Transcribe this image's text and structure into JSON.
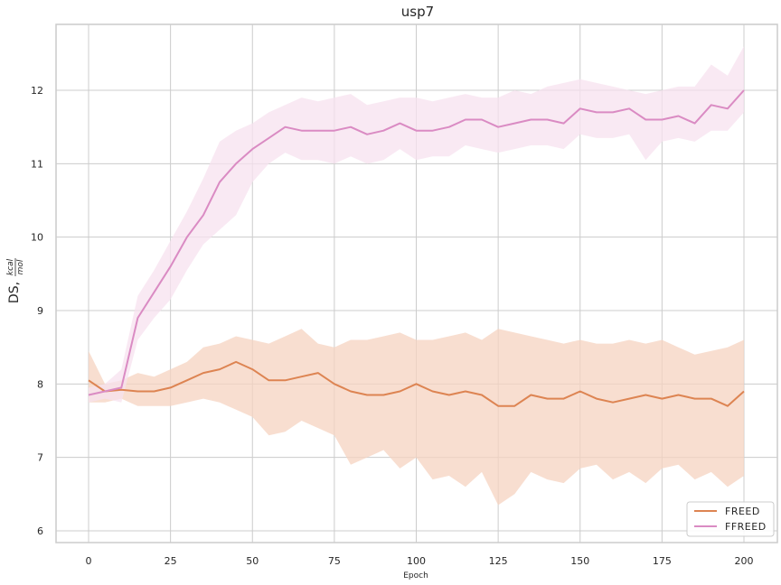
{
  "chart_data": {
    "type": "line",
    "title": "usp7",
    "xlabel": "Epoch",
    "ylabel": "DS, kcal/mol",
    "ylabel_main": "DS,",
    "ylabel_frac_num": "kcal",
    "ylabel_frac_den": "mol",
    "xlim": [
      -10,
      210
    ],
    "ylim": [
      5.85,
      12.9
    ],
    "xticks": [
      0,
      25,
      50,
      75,
      100,
      125,
      150,
      175,
      200
    ],
    "yticks": [
      6,
      7,
      8,
      9,
      10,
      11,
      12
    ],
    "grid": true,
    "legend_position": "lower right",
    "x": [
      0,
      5,
      10,
      15,
      20,
      25,
      30,
      35,
      40,
      45,
      50,
      55,
      60,
      65,
      70,
      75,
      80,
      85,
      90,
      95,
      100,
      105,
      110,
      115,
      120,
      125,
      130,
      135,
      140,
      145,
      150,
      155,
      160,
      165,
      170,
      175,
      180,
      185,
      190,
      195,
      200
    ],
    "series": [
      {
        "name": "FREED",
        "color": "#dd8452",
        "band_color": "#f5d3c0",
        "values": [
          8.05,
          7.9,
          7.92,
          7.9,
          7.9,
          7.95,
          8.05,
          8.15,
          8.2,
          8.3,
          8.2,
          8.05,
          8.05,
          8.1,
          8.15,
          8.0,
          7.9,
          7.85,
          7.85,
          7.9,
          8.0,
          7.9,
          7.85,
          7.9,
          7.85,
          7.7,
          7.7,
          7.85,
          7.8,
          7.8,
          7.9,
          7.8,
          7.75,
          7.8,
          7.85,
          7.8,
          7.85,
          7.8,
          7.8,
          7.7,
          7.9
        ],
        "upper": [
          8.45,
          8.0,
          8.05,
          8.15,
          8.1,
          8.2,
          8.3,
          8.5,
          8.55,
          8.65,
          8.6,
          8.55,
          8.65,
          8.75,
          8.55,
          8.5,
          8.6,
          8.6,
          8.65,
          8.7,
          8.6,
          8.6,
          8.65,
          8.7,
          8.6,
          8.75,
          8.7,
          8.65,
          8.6,
          8.55,
          8.6,
          8.55,
          8.55,
          8.6,
          8.55,
          8.6,
          8.5,
          8.4,
          8.45,
          8.5,
          8.6
        ],
        "lower": [
          7.75,
          7.75,
          7.8,
          7.7,
          7.7,
          7.7,
          7.75,
          7.8,
          7.75,
          7.65,
          7.55,
          7.3,
          7.35,
          7.5,
          7.4,
          7.3,
          6.9,
          7.0,
          7.1,
          6.85,
          7.0,
          6.7,
          6.75,
          6.6,
          6.8,
          6.35,
          6.5,
          6.8,
          6.7,
          6.65,
          6.85,
          6.9,
          6.7,
          6.8,
          6.65,
          6.85,
          6.9,
          6.7,
          6.8,
          6.6,
          6.75
        ]
      },
      {
        "name": "FFREED",
        "color": "#da8bc3",
        "band_color": "#f7e1ef",
        "values": [
          7.85,
          7.9,
          7.95,
          8.9,
          9.25,
          9.6,
          10.0,
          10.3,
          10.75,
          11.0,
          11.2,
          11.35,
          11.5,
          11.45,
          11.45,
          11.45,
          11.5,
          11.4,
          11.45,
          11.55,
          11.45,
          11.45,
          11.5,
          11.6,
          11.6,
          11.5,
          11.55,
          11.6,
          11.6,
          11.55,
          11.75,
          11.7,
          11.7,
          11.75,
          11.6,
          11.6,
          11.65,
          11.55,
          11.8,
          11.75,
          12.0
        ],
        "upper": [
          7.95,
          8.0,
          8.2,
          9.2,
          9.55,
          9.95,
          10.35,
          10.8,
          11.3,
          11.45,
          11.55,
          11.7,
          11.8,
          11.9,
          11.85,
          11.9,
          11.95,
          11.8,
          11.85,
          11.9,
          11.9,
          11.85,
          11.9,
          11.95,
          11.9,
          11.9,
          12.0,
          11.95,
          12.05,
          12.1,
          12.15,
          12.1,
          12.05,
          12.0,
          11.95,
          12.0,
          12.05,
          12.05,
          12.35,
          12.2,
          12.6
        ],
        "lower": [
          7.75,
          7.8,
          7.75,
          8.6,
          8.9,
          9.15,
          9.55,
          9.9,
          10.1,
          10.3,
          10.75,
          11.0,
          11.15,
          11.05,
          11.05,
          11.0,
          11.1,
          11.0,
          11.05,
          11.2,
          11.05,
          11.1,
          11.1,
          11.25,
          11.2,
          11.15,
          11.2,
          11.25,
          11.25,
          11.2,
          11.4,
          11.35,
          11.35,
          11.4,
          11.05,
          11.3,
          11.35,
          11.3,
          11.45,
          11.45,
          11.7
        ]
      }
    ],
    "legend": [
      {
        "label": "FREED",
        "color": "#dd8452"
      },
      {
        "label": "FFREED",
        "color": "#da8bc3"
      }
    ]
  },
  "style": {
    "grid_color": "#cccccc",
    "spine_color": "#cccccc",
    "background": "#ffffff"
  }
}
